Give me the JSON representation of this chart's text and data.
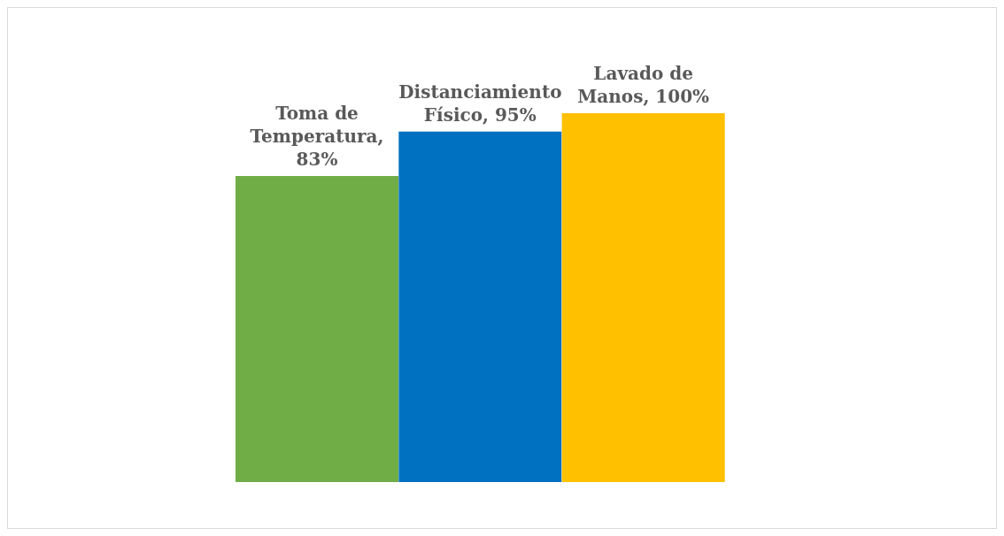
{
  "chart_data": {
    "type": "bar",
    "categories": [
      null,
      null,
      null
    ],
    "values": [
      83,
      95,
      100
    ],
    "colors": [
      "#70ad47",
      "#0070c0",
      "#ffc000"
    ],
    "value_labels": [
      "Toma de Temperatura, 83%",
      "Distanciamiento Físico, 95%",
      "Lavado de Manos, 100%"
    ]
  }
}
